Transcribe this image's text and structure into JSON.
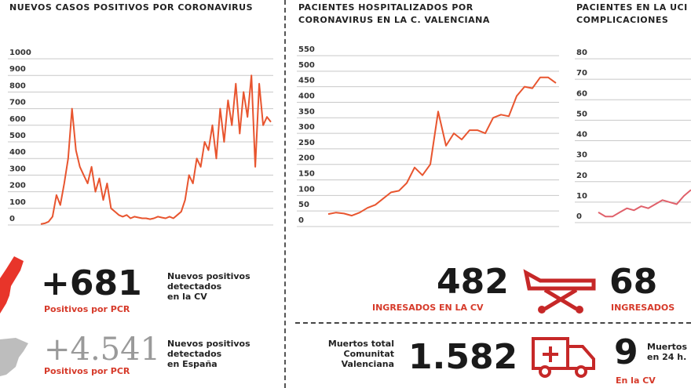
{
  "chart_data": [
    {
      "type": "line",
      "title": "NUEVOS CASOS POSITIVOS POR CORONAVIRUS",
      "yticks": [
        "1000",
        "900",
        "800",
        "700",
        "600",
        "500",
        "400",
        "300",
        "200",
        "100",
        "0"
      ],
      "ylim": [
        0,
        1000
      ],
      "color": "#e8552f",
      "values": [
        5,
        10,
        20,
        50,
        180,
        120,
        250,
        400,
        700,
        450,
        350,
        300,
        250,
        350,
        200,
        280,
        150,
        250,
        100,
        80,
        60,
        50,
        60,
        40,
        50,
        45,
        40,
        40,
        35,
        40,
        50,
        45,
        40,
        50,
        40,
        60,
        80,
        150,
        300,
        250,
        400,
        350,
        500,
        450,
        600,
        400,
        700,
        500,
        750,
        600,
        850,
        550,
        800,
        650,
        900,
        350,
        850,
        600,
        650,
        620
      ]
    },
    {
      "type": "line",
      "title": "PACIENTES HOSPITALIZADOS POR CORONAVIRUS EN LA C. VALENCIANA",
      "yticks": [
        "550",
        "500",
        "450",
        "400",
        "350",
        "300",
        "250",
        "200",
        "150",
        "100",
        "50",
        "0"
      ],
      "ylim": [
        0,
        550
      ],
      "color": "#e8552f",
      "values": [
        40,
        45,
        42,
        35,
        45,
        60,
        70,
        90,
        110,
        115,
        140,
        190,
        165,
        200,
        370,
        260,
        300,
        280,
        310,
        310,
        300,
        350,
        360,
        355,
        420,
        450,
        445,
        480,
        480,
        462
      ]
    },
    {
      "type": "line",
      "title": "PACIENTES EN LA UCI POR COMPLICACIONES",
      "yticks": [
        "80",
        "70",
        "60",
        "50",
        "40",
        "30",
        "20",
        "10",
        "0"
      ],
      "ylim": [
        0,
        80
      ],
      "color": "#e0606a",
      "values": [
        5,
        3,
        3,
        5,
        7,
        6,
        8,
        7,
        9,
        11,
        10,
        9,
        13,
        16
      ]
    }
  ],
  "stats": {
    "cv_positives": "+681",
    "cv_positives_label": "Positivos por PCR",
    "cv_positives_desc": [
      "Nuevos positivos",
      "detectados",
      "en la CV"
    ],
    "es_positives": "+4.541",
    "es_positives_label": "Positivos por PCR",
    "es_positives_desc": [
      "Nuevos positivos",
      "detectados",
      "en España"
    ],
    "hospital_cv": "482",
    "hospital_cv_label": "INGRESADOS EN LA CV",
    "uci_cv": "68",
    "uci_cv_label": "INGRESADOS",
    "deaths_total_label": [
      "Muertos total",
      "Comunitat",
      "Valenciana"
    ],
    "deaths_total": "1.582",
    "deaths_24h": "9",
    "deaths_24h_label": [
      "Muertos",
      "en 24 h."
    ],
    "deaths_24h_sub": "En la CV"
  }
}
